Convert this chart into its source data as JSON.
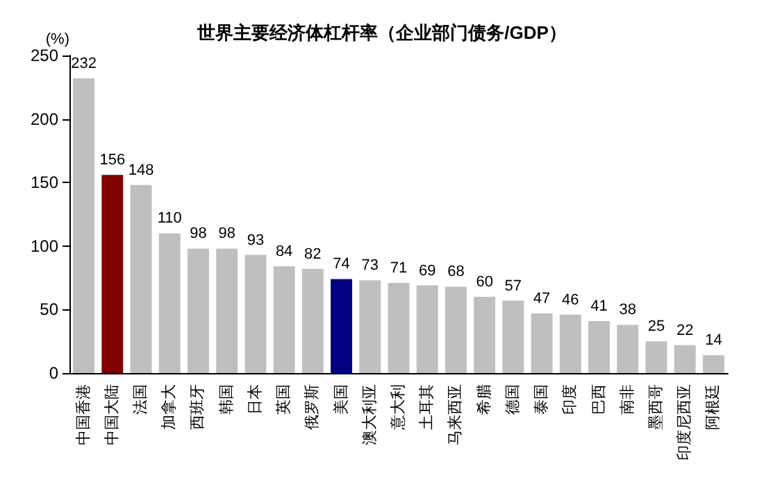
{
  "chart_data": {
    "type": "bar",
    "title": "世界主要经济体杠杆率（企业部门债务/GDP）",
    "ylabel": "(%)",
    "categories": [
      "中国香港",
      "中国大陆",
      "法国",
      "加拿大",
      "西班牙",
      "韩国",
      "日本",
      "英国",
      "俄罗斯",
      "美国",
      "澳大利亚",
      "意大利",
      "土耳其",
      "马来西亚",
      "希腊",
      "德国",
      "泰国",
      "印度",
      "巴西",
      "南非",
      "墨西哥",
      "印度尼西亚",
      "阿根廷"
    ],
    "values": [
      232,
      156,
      148,
      110,
      98,
      98,
      93,
      84,
      82,
      74,
      73,
      71,
      69,
      68,
      60,
      57,
      47,
      46,
      41,
      38,
      25,
      22,
      14
    ],
    "colors": [
      "#bfbfbf",
      "#7f0000",
      "#bfbfbf",
      "#bfbfbf",
      "#bfbfbf",
      "#bfbfbf",
      "#bfbfbf",
      "#bfbfbf",
      "#bfbfbf",
      "#000080",
      "#bfbfbf",
      "#bfbfbf",
      "#bfbfbf",
      "#bfbfbf",
      "#bfbfbf",
      "#bfbfbf",
      "#bfbfbf",
      "#bfbfbf",
      "#bfbfbf",
      "#bfbfbf",
      "#bfbfbf",
      "#bfbfbf",
      "#bfbfbf"
    ],
    "ylim": [
      0,
      250
    ],
    "yticks": [
      0,
      50,
      100,
      150,
      200,
      250
    ],
    "data_labels": true
  }
}
